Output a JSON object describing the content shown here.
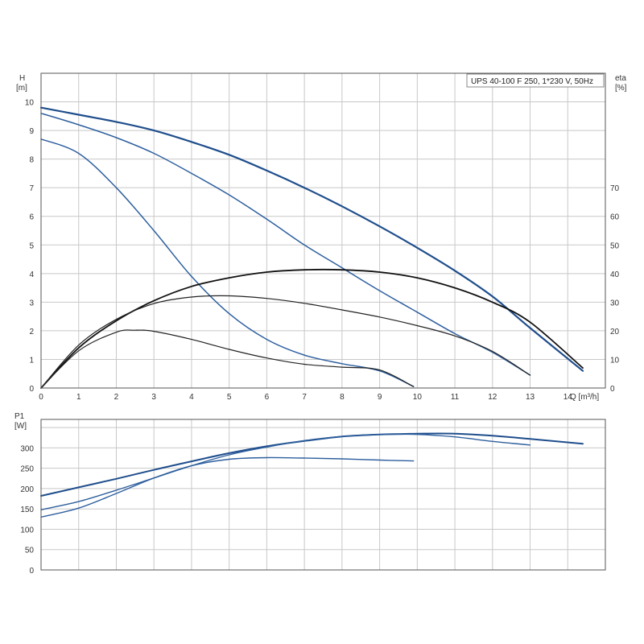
{
  "chart_data": [
    {
      "type": "line",
      "title": "UPS 40-100 F 250, 1*230 V, 50Hz",
      "xlabel": "Q [m³/h]",
      "x_unit_label": "Q [m³/h]",
      "ylabel": "H",
      "ylabel_unit": "[m]",
      "y2label": "eta",
      "y2label_unit": "[%]",
      "xlim": [
        0,
        15
      ],
      "ylim": [
        0,
        11
      ],
      "y2lim": [
        0,
        110
      ],
      "x_ticks": [
        "0",
        "1",
        "2",
        "3",
        "4",
        "5",
        "6",
        "7",
        "8",
        "9",
        "10",
        "11",
        "12",
        "13",
        "14"
      ],
      "y_ticks": [
        "0",
        "1",
        "2",
        "3",
        "4",
        "5",
        "6",
        "7",
        "8",
        "9",
        "10"
      ],
      "y2_ticks": [
        "0",
        "10",
        "20",
        "30",
        "40",
        "50",
        "60",
        "70"
      ],
      "grid": true,
      "legend_placement": "top-right",
      "series": [
        {
          "kind": "head",
          "color": "#1f4e8c",
          "width": 2.2,
          "x": [
            0,
            1,
            2,
            3,
            4,
            5,
            6,
            7,
            8,
            9,
            10,
            11,
            12,
            13,
            14.4
          ],
          "y": [
            9.8,
            9.55,
            9.3,
            9.0,
            8.6,
            8.15,
            7.6,
            7.0,
            6.35,
            5.65,
            4.9,
            4.1,
            3.2,
            2.1,
            0.6
          ]
        },
        {
          "kind": "head",
          "color": "#2e5f9e",
          "width": 1.5,
          "x": [
            0,
            1,
            2,
            3,
            4,
            5,
            6,
            7,
            8,
            9,
            10,
            11,
            12,
            13
          ],
          "y": [
            9.6,
            9.2,
            8.75,
            8.2,
            7.5,
            6.75,
            5.9,
            5.0,
            4.2,
            3.4,
            2.65,
            1.9,
            1.25,
            0.45
          ]
        },
        {
          "kind": "head",
          "color": "#2e5f9e",
          "width": 1.5,
          "x": [
            0,
            1,
            2,
            3,
            4,
            5,
            6,
            7,
            8,
            9,
            9.9
          ],
          "y": [
            8.7,
            8.2,
            7.0,
            5.5,
            3.9,
            2.6,
            1.7,
            1.15,
            0.85,
            0.6,
            0.05
          ]
        },
        {
          "kind": "eta",
          "color": "#111111",
          "width": 1.8,
          "x": [
            0,
            1,
            2,
            3,
            4,
            5,
            6,
            7,
            8,
            9,
            10,
            11,
            12,
            13,
            14.4
          ],
          "y": [
            0,
            14,
            23.5,
            30.5,
            35.5,
            38.5,
            40.5,
            41.3,
            41.3,
            40.5,
            38.5,
            35,
            30,
            23,
            7
          ]
        },
        {
          "kind": "eta",
          "color": "#222222",
          "width": 1.2,
          "x": [
            0,
            1,
            2,
            3,
            4,
            5,
            6,
            7,
            8,
            9,
            10,
            11,
            12,
            13
          ],
          "y": [
            0,
            15,
            24,
            29.5,
            31.8,
            32.2,
            31.3,
            29.6,
            27.3,
            24.8,
            21.8,
            18.2,
            12.8,
            4.5
          ]
        },
        {
          "kind": "eta",
          "color": "#222222",
          "width": 1.2,
          "x": [
            0,
            1,
            2,
            2.5,
            3,
            4,
            5,
            6,
            7,
            8,
            9,
            9.9
          ],
          "y": [
            0,
            13,
            19.5,
            20.2,
            19.8,
            17,
            13.5,
            10.5,
            8.3,
            7.3,
            6.3,
            0.5
          ]
        }
      ]
    },
    {
      "type": "line",
      "title": "",
      "ylabel": "P1",
      "ylabel_unit": "[W]",
      "xlim": [
        0,
        15
      ],
      "ylim": [
        0,
        370
      ],
      "y_ticks": [
        "0",
        "50",
        "100",
        "150",
        "200",
        "250",
        "300"
      ],
      "grid": true,
      "series": [
        {
          "color": "#1f4e8c",
          "width": 2.0,
          "x": [
            0,
            1,
            2,
            3,
            4,
            5,
            6,
            7,
            8,
            9,
            10,
            11,
            12,
            13,
            14.4
          ],
          "y": [
            182,
            203,
            224,
            246,
            267,
            287,
            304,
            317,
            328,
            333,
            335,
            335,
            330,
            322,
            310
          ]
        },
        {
          "color": "#2e5f9e",
          "width": 1.4,
          "x": [
            0,
            1,
            2,
            3,
            4,
            5,
            6,
            7,
            8,
            9,
            10,
            11,
            12,
            13
          ],
          "y": [
            148,
            168,
            196,
            226,
            256,
            283,
            302,
            318,
            328,
            333,
            333,
            327,
            316,
            307
          ]
        },
        {
          "color": "#2e5f9e",
          "width": 1.4,
          "x": [
            0,
            1,
            2,
            3,
            4,
            5,
            6,
            7,
            8,
            9,
            9.9
          ],
          "y": [
            130,
            152,
            188,
            226,
            256,
            272,
            276,
            275,
            273,
            270,
            268
          ]
        }
      ]
    }
  ]
}
